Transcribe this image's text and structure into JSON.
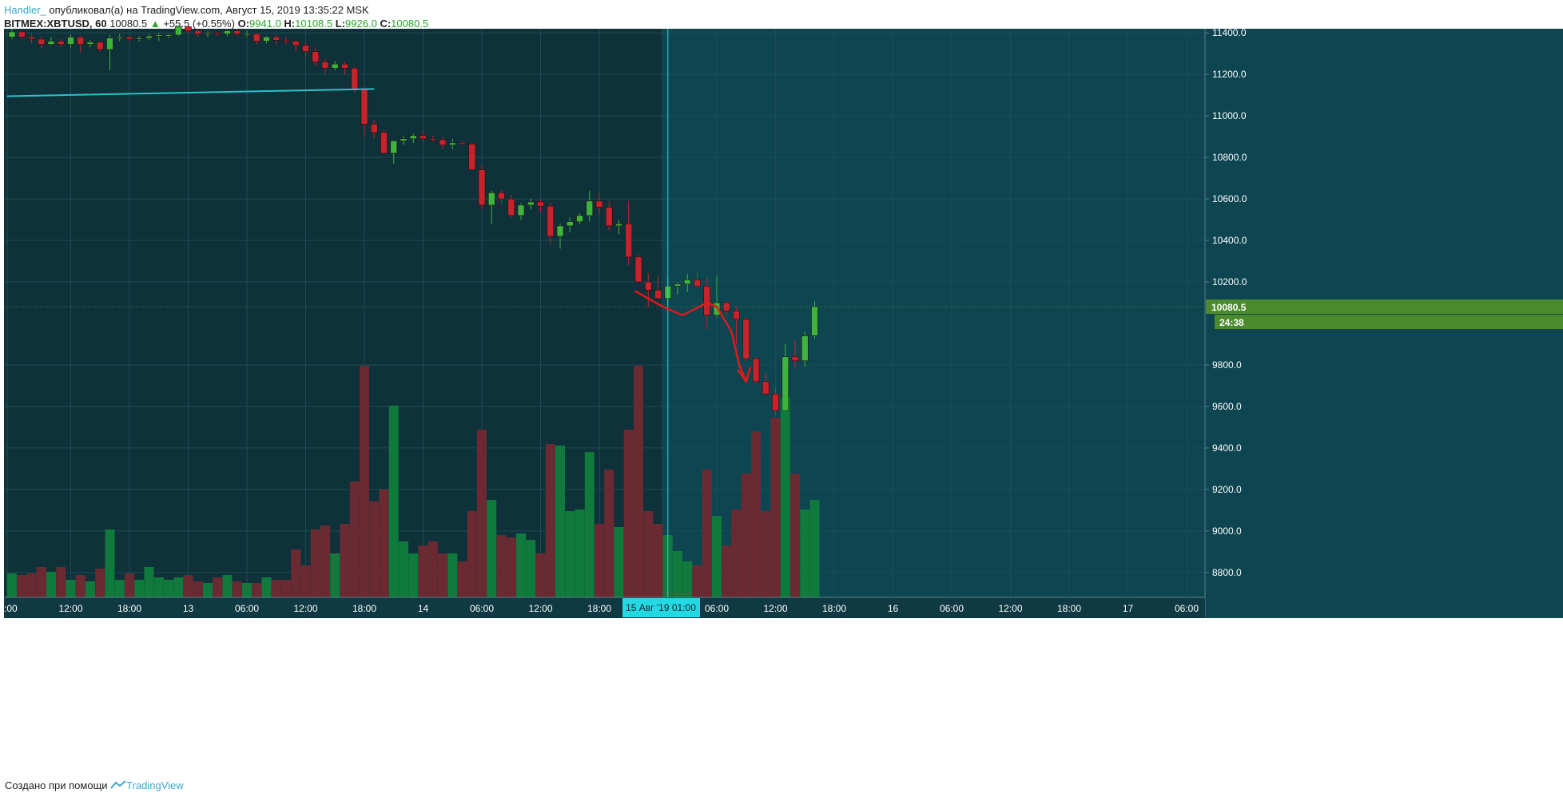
{
  "header": {
    "author": "Handler_",
    "published_text": " опубликовал(а) на TradingView.com, Август 15, 2019 13:35:22 MSK",
    "symbol": "BITMEX:XBTUSD, 60",
    "last": "10080.5",
    "change_arrow": "▲",
    "change": "+55.5 (+0.55%)",
    "o_label": "O:",
    "o_value": "9941.0",
    "h_label": "H:",
    "h_value": "10108.5",
    "l_label": "L:",
    "l_value": "9926.0",
    "c_label": "C:",
    "c_value": "10080.5"
  },
  "footer": {
    "text": "Создано при помощи",
    "brand": "TradingView"
  },
  "colors": {
    "background_left": "#0f3139",
    "background_right": "#0d4551",
    "grid": "#1f4c56",
    "up": "#3db53d",
    "down": "#c8232d",
    "volume_up": "#0f7a3c",
    "volume_down": "#6b2a32",
    "trendline": "#27c3c9",
    "arrow": "#e01a1a",
    "crosshair": "#3ad0d6",
    "price_label": "#4c8a2e",
    "axis_text": "#ffffff"
  },
  "chart_data": {
    "type": "candlestick",
    "symbol": "BITMEX:XBTUSD",
    "interval": "60",
    "ylim": [
      8680,
      11420
    ],
    "y_ticks": [
      "11400.0",
      "11200.0",
      "11000.0",
      "10800.0",
      "10600.0",
      "10400.0",
      "10200.0",
      "9800.0",
      "9600.0",
      "9400.0",
      "9200.0",
      "9000.0",
      "8800.0"
    ],
    "y_tick_values": [
      11400,
      11200,
      11000,
      10800,
      10600,
      10400,
      10200,
      9800,
      9600,
      9400,
      9200,
      9000,
      8800
    ],
    "x_ticks": [
      ":00",
      "12:00",
      "18:00",
      "13",
      "06:00",
      "12:00",
      "18:00",
      "14",
      "06:00",
      "12:00",
      "18:00",
      "06:00",
      "12:00",
      "18:00",
      "16",
      "06:00",
      "12:00",
      "18:00",
      "17",
      "06:00"
    ],
    "x_tick_index": [
      -0.5,
      6,
      12,
      18,
      24,
      30,
      36,
      42,
      48,
      54,
      60,
      72,
      78,
      84,
      90,
      96,
      102,
      108,
      114,
      120
    ],
    "current_price": "10080.5",
    "countdown": "24:38",
    "crosshair_time": "15 Авг '19   01:00",
    "crosshair_index": 67,
    "volume_scale_max": 180,
    "candles": [
      [
        11380,
        11420,
        11370,
        11405,
        30
      ],
      [
        11405,
        11410,
        11370,
        11380,
        28
      ],
      [
        11380,
        11395,
        11350,
        11370,
        30
      ],
      [
        11370,
        11380,
        11325,
        11345,
        38
      ],
      [
        11345,
        11380,
        11340,
        11360,
        32
      ],
      [
        11360,
        11370,
        11335,
        11345,
        38
      ],
      [
        11345,
        11390,
        11330,
        11380,
        22
      ],
      [
        11380,
        11385,
        11305,
        11345,
        28
      ],
      [
        11345,
        11365,
        11330,
        11355,
        20
      ],
      [
        11355,
        11360,
        11310,
        11320,
        36
      ],
      [
        11320,
        11390,
        11220,
        11375,
        85
      ],
      [
        11375,
        11395,
        11360,
        11380,
        22
      ],
      [
        11380,
        11385,
        11360,
        11370,
        30
      ],
      [
        11370,
        11385,
        11360,
        11375,
        22
      ],
      [
        11375,
        11395,
        11365,
        11385,
        38
      ],
      [
        11385,
        11400,
        11360,
        11390,
        25
      ],
      [
        11390,
        11395,
        11375,
        11390,
        22
      ],
      [
        11390,
        11440,
        11385,
        11430,
        25
      ],
      [
        11430,
        11435,
        11395,
        11410,
        28
      ],
      [
        11410,
        11415,
        11380,
        11395,
        20
      ],
      [
        11395,
        11410,
        11380,
        11400,
        18
      ],
      [
        11400,
        11405,
        11385,
        11395,
        25
      ],
      [
        11395,
        11415,
        11385,
        11410,
        28
      ],
      [
        11410,
        11420,
        11385,
        11395,
        20
      ],
      [
        11395,
        11410,
        11380,
        11395,
        18
      ],
      [
        11395,
        11400,
        11345,
        11360,
        18
      ],
      [
        11360,
        11385,
        11350,
        11380,
        25
      ],
      [
        11380,
        11390,
        11345,
        11365,
        22
      ],
      [
        11365,
        11380,
        11345,
        11360,
        22
      ],
      [
        11360,
        11365,
        11310,
        11340,
        60
      ],
      [
        11340,
        11350,
        11285,
        11310,
        40
      ],
      [
        11310,
        11330,
        11240,
        11260,
        85
      ],
      [
        11260,
        11275,
        11205,
        11230,
        90
      ],
      [
        11230,
        11265,
        11220,
        11250,
        55
      ],
      [
        11250,
        11260,
        11200,
        11230,
        92
      ],
      [
        11230,
        11235,
        11110,
        11130,
        145
      ],
      [
        11130,
        11140,
        10900,
        10960,
        290
      ],
      [
        10960,
        10980,
        10890,
        10920,
        120
      ],
      [
        10920,
        10930,
        10820,
        10820,
        135
      ],
      [
        10820,
        10880,
        10770,
        10880,
        240
      ],
      [
        10880,
        10900,
        10860,
        10890,
        70
      ],
      [
        10890,
        10915,
        10870,
        10905,
        55
      ],
      [
        10905,
        10930,
        10880,
        10890,
        65
      ],
      [
        10890,
        10905,
        10875,
        10885,
        70
      ],
      [
        10885,
        10895,
        10840,
        10860,
        55
      ],
      [
        10860,
        10890,
        10840,
        10870,
        55
      ],
      [
        10870,
        10880,
        10860,
        10865,
        45
      ],
      [
        10865,
        10870,
        10740,
        10740,
        108
      ],
      [
        10740,
        10760,
        10550,
        10570,
        210
      ],
      [
        10570,
        10640,
        10480,
        10630,
        122
      ],
      [
        10630,
        10640,
        10580,
        10600,
        78
      ],
      [
        10600,
        10620,
        10510,
        10520,
        75
      ],
      [
        10520,
        10580,
        10500,
        10570,
        80
      ],
      [
        10570,
        10600,
        10550,
        10585,
        72
      ],
      [
        10585,
        10595,
        10540,
        10565,
        55
      ],
      [
        10565,
        10580,
        10380,
        10420,
        192
      ],
      [
        10420,
        10480,
        10360,
        10470,
        190
      ],
      [
        10470,
        10510,
        10440,
        10490,
        108
      ],
      [
        10490,
        10530,
        10480,
        10520,
        110
      ],
      [
        10520,
        10640,
        10490,
        10590,
        182
      ],
      [
        10590,
        10630,
        10520,
        10560,
        92
      ],
      [
        10560,
        10590,
        10450,
        10470,
        160
      ],
      [
        10470,
        10500,
        10430,
        10480,
        88
      ],
      [
        10480,
        10590,
        10280,
        10320,
        210
      ],
      [
        10320,
        10330,
        10200,
        10200,
        290
      ],
      [
        10200,
        10240,
        10080,
        10160,
        108
      ],
      [
        10160,
        10230,
        10120,
        10120,
        92
      ],
      [
        10120,
        10220,
        10100,
        10180,
        78
      ],
      [
        10180,
        10200,
        10140,
        10190,
        58
      ],
      [
        10190,
        10240,
        10150,
        10210,
        45
      ],
      [
        10210,
        10250,
        10170,
        10180,
        40
      ],
      [
        10180,
        10220,
        9970,
        10040,
        160
      ],
      [
        10040,
        10230,
        10030,
        10100,
        102
      ],
      [
        10100,
        10110,
        10040,
        10060,
        65
      ],
      [
        10060,
        10080,
        9900,
        10020,
        110
      ],
      [
        10020,
        10030,
        9820,
        9830,
        155
      ],
      [
        9830,
        9840,
        9710,
        9720,
        208
      ],
      [
        9720,
        9760,
        9660,
        9660,
        108
      ],
      [
        9660,
        9690,
        9560,
        9580,
        225
      ],
      [
        9580,
        9900,
        9570,
        9840,
        250
      ],
      [
        9840,
        9920,
        9780,
        9820,
        155
      ],
      [
        9820,
        9960,
        9790,
        9940,
        110
      ],
      [
        9941,
        10108.5,
        9926,
        10080.5,
        122
      ]
    ]
  },
  "annotations": {
    "trendline": {
      "from": [
        -0.5,
        11095
      ],
      "to": [
        37,
        11130
      ]
    },
    "arrow": {
      "points": [
        [
          63.7,
          10155
        ],
        [
          66.5,
          10080
        ],
        [
          68.5,
          10040
        ],
        [
          70,
          10075
        ],
        [
          71,
          10100
        ],
        [
          72,
          10080
        ],
        [
          73.5,
          9960
        ],
        [
          74.3,
          9800
        ],
        [
          75,
          9720
        ]
      ]
    }
  }
}
